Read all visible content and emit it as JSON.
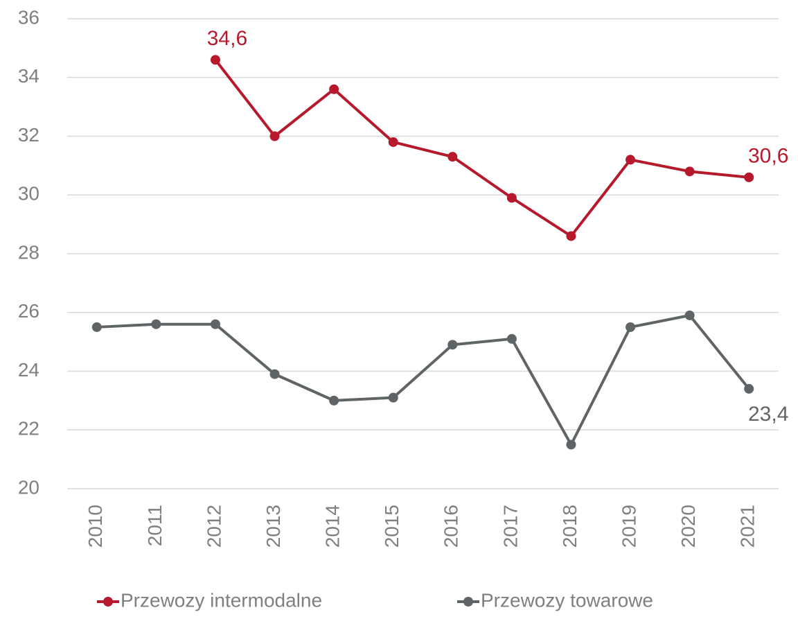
{
  "chart_data": {
    "type": "line",
    "categories": [
      "2010",
      "2011",
      "2012",
      "2013",
      "2014",
      "2015",
      "2016",
      "2017",
      "2018",
      "2019",
      "2020",
      "2021"
    ],
    "series": [
      {
        "name": "Przewozy intermodalne",
        "color": "#b5192b",
        "values": [
          null,
          null,
          34.6,
          32.0,
          33.6,
          31.8,
          31.3,
          29.9,
          28.6,
          31.2,
          30.8,
          30.6
        ],
        "value_labels": [
          null,
          null,
          "34,6",
          null,
          null,
          null,
          null,
          null,
          null,
          null,
          null,
          "30,6"
        ]
      },
      {
        "name": "Przewozy towarowe",
        "color": "#5f6466",
        "values": [
          25.5,
          25.6,
          25.6,
          23.9,
          23.0,
          23.1,
          24.9,
          25.1,
          21.5,
          25.5,
          25.9,
          23.4
        ],
        "value_labels": [
          null,
          null,
          null,
          null,
          null,
          null,
          null,
          null,
          null,
          null,
          null,
          "23,4"
        ]
      }
    ],
    "ylim": [
      20,
      36
    ],
    "yticks": [
      20,
      22,
      24,
      26,
      28,
      30,
      32,
      34,
      36
    ],
    "grid": true,
    "legend": "bottom"
  }
}
